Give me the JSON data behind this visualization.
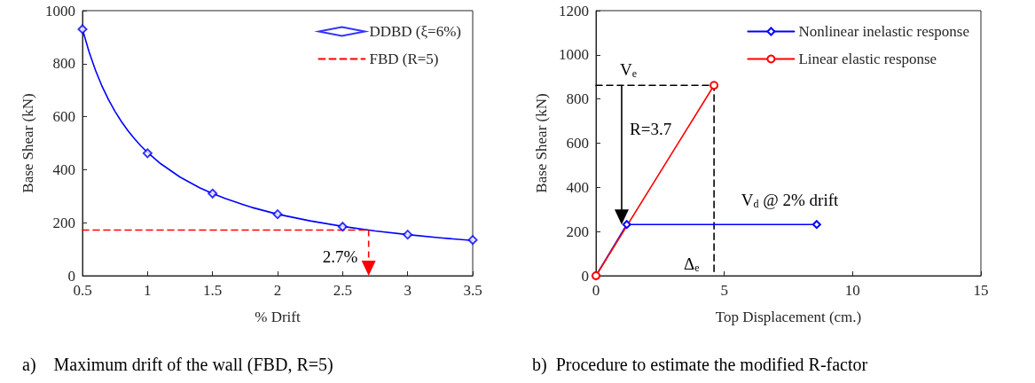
{
  "chart_data": [
    {
      "type": "scatter",
      "title": "a)    Maximum drift of the wall (FBD, R=5)",
      "xlabel": "% Drift",
      "ylabel": "Base Shear (kN)",
      "xlim": [
        0.5,
        3.5
      ],
      "xticks": [
        0.5,
        1,
        1.5,
        2,
        2.5,
        3,
        3.5
      ],
      "ylim": [
        0,
        1000
      ],
      "yticks": [
        0,
        200,
        400,
        600,
        800,
        1000
      ],
      "legend": "top right",
      "grid": false,
      "series": [
        {
          "type": "line",
          "color": "#0000ff",
          "marker": "none",
          "line_style": "solid",
          "x": [
            0.5,
            0.55,
            0.6,
            0.65,
            0.7,
            0.75,
            0.8,
            0.85,
            0.9,
            0.95,
            1,
            1.1,
            1.25,
            1.4,
            1.5,
            1.6,
            1.75,
            1.8,
            2,
            2.25,
            2.5,
            2.75,
            3,
            3.25,
            3.5
          ],
          "values": [
            930,
            845,
            775,
            715,
            664,
            620,
            581,
            547,
            517,
            489,
            465,
            423,
            372,
            332,
            310,
            291,
            266,
            258,
            232,
            207,
            186,
            169,
            155,
            143,
            133
          ]
        },
        {
          "name": "DDBD (ξ=6%)",
          "color": "#0000ff",
          "marker": "diamond",
          "x": [
            0.5,
            1,
            1.5,
            2,
            2.5,
            3,
            3.5
          ],
          "values": [
            930,
            462,
            310,
            232,
            185,
            155,
            135
          ]
        },
        {
          "name": "FBD (R=5)",
          "type": "line",
          "color": "#ff0000",
          "marker": "none",
          "line_style": "dashed",
          "x": [
            0.5,
            2.7
          ],
          "values": [
            172,
            172
          ]
        }
      ],
      "annotations": [
        {
          "text": "2.7%",
          "x": 2.7,
          "y": 172
        }
      ]
    },
    {
      "type": "line",
      "title": "b)  Procedure to estimate the modified R-factor",
      "xlabel": "Top Displacement (cm.)",
      "ylabel": "Base Shear (kN)",
      "xlim": [
        0,
        15
      ],
      "xticks": [
        0,
        5,
        10,
        15
      ],
      "ylim": [
        0,
        1200
      ],
      "yticks": [
        0,
        200,
        400,
        600,
        800,
        1000,
        1200
      ],
      "legend": "top right",
      "grid": false,
      "series": [
        {
          "color": "#000000",
          "marker": "none",
          "line_style": "dashed",
          "x": [
            0,
            4.6,
            4.6
          ],
          "values": [
            862,
            862,
            0
          ]
        },
        {
          "name": "Nonlinear inelastic response",
          "color": "#0000ff",
          "marker": "diamond",
          "line_style": "solid",
          "x": [
            0,
            1.2,
            8.6
          ],
          "values": [
            0,
            232,
            232
          ]
        },
        {
          "name": "Linear elastic response",
          "color": "#ff0000",
          "marker": "circle",
          "line_style": "solid",
          "x": [
            0,
            4.6
          ],
          "values": [
            0,
            862
          ]
        }
      ],
      "annotations": [
        {
          "text": "V$_{e}$",
          "x": 1,
          "y": 862
        },
        "R=3.7",
        {
          "text": "Δ$_{e}$",
          "x": 4.6,
          "y": 0
        },
        {
          "text": "V$_{d}$ @ 2% drift",
          "x": 8.6,
          "y": 232
        }
      ]
    }
  ]
}
